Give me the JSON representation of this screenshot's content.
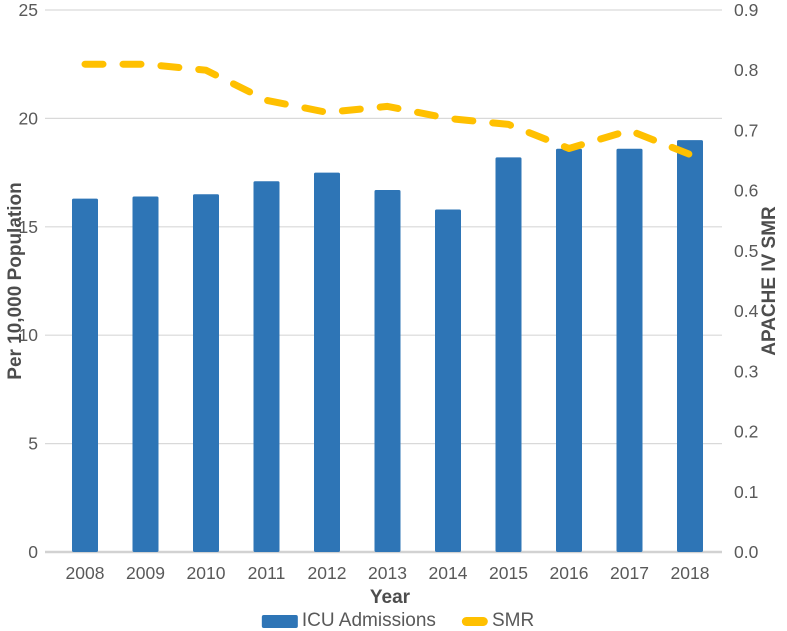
{
  "chart_data": {
    "type": "bar",
    "subtype": "combo-bar-dashed-line-dual-axis",
    "title": "",
    "categories": [
      "2008",
      "2009",
      "2010",
      "2011",
      "2012",
      "2013",
      "2014",
      "2015",
      "2016",
      "2017",
      "2018"
    ],
    "series": [
      {
        "name": "ICU Admissions",
        "type": "bar",
        "axis": "left",
        "color": "#2E75B6",
        "values": [
          16.3,
          16.4,
          16.5,
          17.1,
          17.5,
          16.7,
          15.8,
          18.2,
          18.6,
          18.6,
          19.0
        ]
      },
      {
        "name": "SMR",
        "type": "line",
        "style": "dashed",
        "axis": "right",
        "color": "#FFC000",
        "values": [
          0.81,
          0.81,
          0.8,
          0.75,
          0.73,
          0.74,
          0.72,
          0.71,
          0.67,
          0.7,
          0.66
        ]
      }
    ],
    "x_axis": {
      "label": "Year"
    },
    "left_axis": {
      "label": "Per 10,000 Population",
      "min": 0,
      "max": 25,
      "step": 5,
      "ticks": [
        "0",
        "5",
        "10",
        "15",
        "20",
        "25"
      ]
    },
    "right_axis": {
      "label": "APACHE IV SMR",
      "min": 0,
      "max": 0.9,
      "step": 0.1,
      "ticks": [
        "0.0",
        "0.1",
        "0.2",
        "0.3",
        "0.4",
        "0.5",
        "0.6",
        "0.7",
        "0.8",
        "0.9"
      ]
    },
    "grid": "horizontal-major-left-axis",
    "legend_position": "bottom"
  },
  "colors": {
    "tick_text": "#595959",
    "axis_title_text": "#4d4d4d",
    "gridline": "#D9D9D9",
    "baseline": "#D2D2D2",
    "background": "#FFFFFF"
  }
}
